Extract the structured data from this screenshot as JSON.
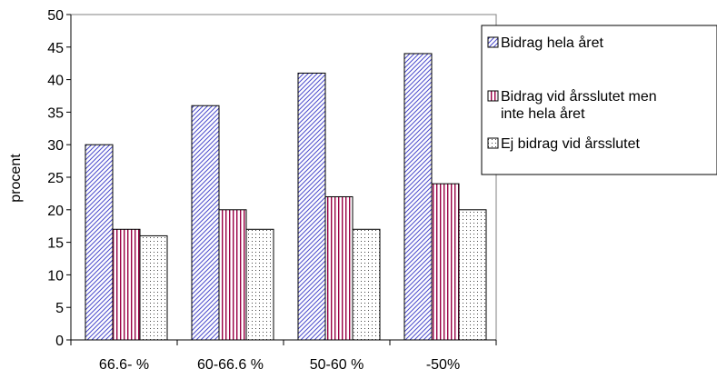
{
  "chart_data": {
    "type": "bar",
    "title": "",
    "xlabel": "",
    "ylabel": "procent",
    "ylim": [
      0,
      50
    ],
    "yticks": [
      0,
      5,
      10,
      15,
      20,
      25,
      30,
      35,
      40,
      45,
      50
    ],
    "grid": false,
    "legend_position": "right",
    "categories": [
      "66.6- %",
      "60-66.6 %",
      "50-60 %",
      "-50%"
    ],
    "series": [
      {
        "name": "Bidrag hela året",
        "values": [
          30,
          36,
          41,
          44
        ],
        "pattern": "diagonal-hatch",
        "color": "#4a4acc"
      },
      {
        "name": "Bidrag vid årsslutet men inte hela året",
        "values": [
          17,
          20,
          22,
          24
        ],
        "pattern": "vertical-stripes",
        "color": "#990044"
      },
      {
        "name": "Ej bidrag vid årsslutet",
        "values": [
          16,
          17,
          17,
          20
        ],
        "pattern": "dots",
        "color": "#333333"
      }
    ]
  }
}
